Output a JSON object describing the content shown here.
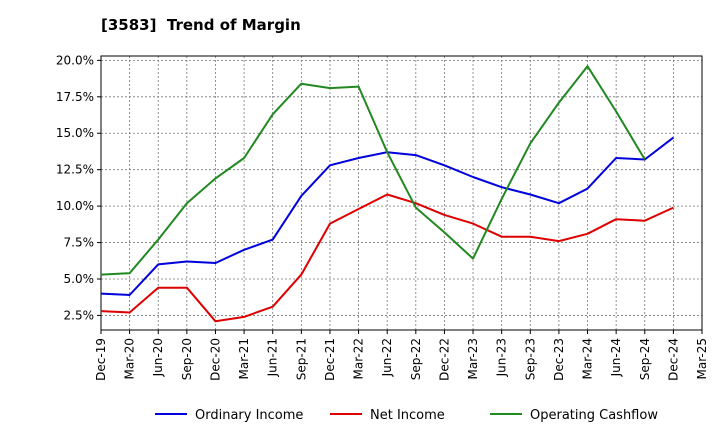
{
  "chart_data": {
    "type": "line",
    "title": "[3583]  Trend of Margin",
    "xlabel": "",
    "ylabel": "",
    "categories": [
      "Dec-19",
      "Mar-20",
      "Jun-20",
      "Sep-20",
      "Dec-20",
      "Mar-21",
      "Jun-21",
      "Sep-21",
      "Dec-21",
      "Mar-22",
      "Jun-22",
      "Sep-22",
      "Dec-22",
      "Mar-23",
      "Jun-23",
      "Sep-23",
      "Dec-23",
      "Mar-24",
      "Jun-24",
      "Sep-24",
      "Dec-24",
      "Mar-25"
    ],
    "ylim": [
      1.5,
      20.3
    ],
    "yticks": [
      2.5,
      5.0,
      7.5,
      10.0,
      12.5,
      15.0,
      17.5,
      20.0
    ],
    "ytick_labels": [
      "2.5%",
      "5.0%",
      "7.5%",
      "10.0%",
      "12.5%",
      "15.0%",
      "17.5%",
      "20.0%"
    ],
    "grid": true,
    "legend_position": "bottom",
    "series": [
      {
        "name": "Ordinary Income",
        "color": "#0000dd",
        "values": [
          4.0,
          3.9,
          6.0,
          6.2,
          6.1,
          7.0,
          7.7,
          10.7,
          12.8,
          13.3,
          13.7,
          13.5,
          12.8,
          12.0,
          11.3,
          10.8,
          10.2,
          11.2,
          13.3,
          13.2,
          14.7,
          null
        ]
      },
      {
        "name": "Net Income",
        "color": "#dd0000",
        "values": [
          2.8,
          2.7,
          4.4,
          4.4,
          2.1,
          2.4,
          3.1,
          5.3,
          8.8,
          9.8,
          10.8,
          10.2,
          9.4,
          8.8,
          7.9,
          7.9,
          7.6,
          8.1,
          9.1,
          9.0,
          9.9,
          null
        ]
      },
      {
        "name": "Operating Cashflow",
        "color": "#228822",
        "values": [
          5.3,
          5.4,
          7.7,
          10.2,
          11.9,
          13.3,
          16.3,
          18.4,
          18.1,
          18.2,
          13.7,
          9.9,
          8.2,
          6.4,
          10.5,
          14.3,
          17.1,
          19.6,
          16.5,
          13.2,
          null,
          null
        ]
      }
    ]
  }
}
